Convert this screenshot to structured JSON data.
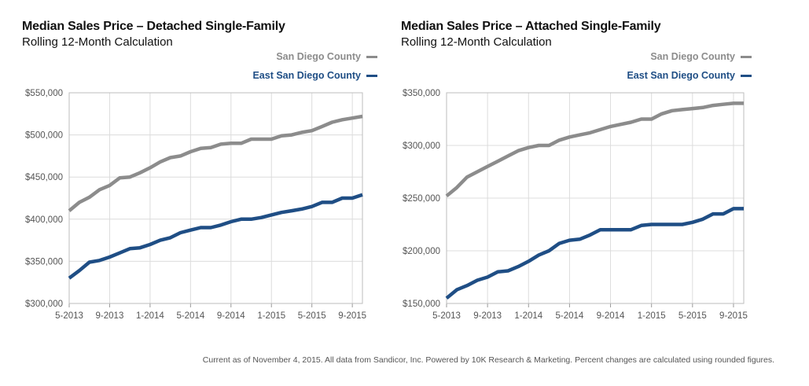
{
  "footer": "Current as of November 4, 2015. All data from Sandicor, Inc. Powered by 10K Research & Marketing. Percent changes are calculated using rounded figures.",
  "chart_data": [
    {
      "type": "line",
      "title": "Median Sales Price – Detached Single-Family",
      "subtitle": "Rolling 12-Month Calculation",
      "x_tick_labels": [
        "5-2013",
        "9-2013",
        "1-2014",
        "5-2014",
        "9-2014",
        "1-2015",
        "5-2015",
        "9-2015"
      ],
      "x": [
        "5-2013",
        "6-2013",
        "7-2013",
        "8-2013",
        "9-2013",
        "10-2013",
        "11-2013",
        "12-2013",
        "1-2014",
        "2-2014",
        "3-2014",
        "4-2014",
        "5-2014",
        "6-2014",
        "7-2014",
        "8-2014",
        "9-2014",
        "10-2014",
        "11-2014",
        "12-2014",
        "1-2015",
        "2-2015",
        "3-2015",
        "4-2015",
        "5-2015",
        "6-2015",
        "7-2015",
        "8-2015",
        "9-2015",
        "10-2015"
      ],
      "y_tick_labels": [
        "$300,000",
        "$350,000",
        "$400,000",
        "$450,000",
        "$500,000",
        "$550,000"
      ],
      "y_ticks": [
        300000,
        350000,
        400000,
        450000,
        500000,
        550000
      ],
      "ylim": [
        300000,
        550000
      ],
      "legend_position": "top-right",
      "grid": true,
      "series": [
        {
          "name": "San Diego County",
          "color": "#8c8c8c",
          "values": [
            410000,
            420000,
            426000,
            435000,
            440000,
            449000,
            450000,
            455000,
            461000,
            468000,
            473000,
            475000,
            480000,
            484000,
            485000,
            489000,
            490000,
            490000,
            495000,
            495000,
            495000,
            499000,
            500000,
            503000,
            505000,
            510000,
            515000,
            518000,
            520000,
            522000
          ]
        },
        {
          "name": "East San Diego County",
          "color": "#1f4e85",
          "values": [
            330000,
            339000,
            349000,
            351000,
            355000,
            360000,
            365000,
            366000,
            370000,
            375000,
            378000,
            384000,
            387000,
            390000,
            390000,
            393000,
            397000,
            400000,
            400000,
            402000,
            405000,
            408000,
            410000,
            412000,
            415000,
            420000,
            420000,
            425000,
            425000,
            429000
          ]
        }
      ]
    },
    {
      "type": "line",
      "title": "Median Sales Price – Attached Single-Family",
      "subtitle": "Rolling 12-Month Calculation",
      "x_tick_labels": [
        "5-2013",
        "9-2013",
        "1-2014",
        "5-2014",
        "9-2014",
        "1-2015",
        "5-2015",
        "9-2015"
      ],
      "x": [
        "5-2013",
        "6-2013",
        "7-2013",
        "8-2013",
        "9-2013",
        "10-2013",
        "11-2013",
        "12-2013",
        "1-2014",
        "2-2014",
        "3-2014",
        "4-2014",
        "5-2014",
        "6-2014",
        "7-2014",
        "8-2014",
        "9-2014",
        "10-2014",
        "11-2014",
        "12-2014",
        "1-2015",
        "2-2015",
        "3-2015",
        "4-2015",
        "5-2015",
        "6-2015",
        "7-2015",
        "8-2015",
        "9-2015",
        "10-2015"
      ],
      "y_tick_labels": [
        "$150,000",
        "$200,000",
        "$250,000",
        "$300,000",
        "$350,000"
      ],
      "y_ticks": [
        150000,
        200000,
        250000,
        300000,
        350000
      ],
      "ylim": [
        150000,
        350000
      ],
      "legend_position": "top-right",
      "grid": true,
      "series": [
        {
          "name": "San Diego County",
          "color": "#8c8c8c",
          "values": [
            252000,
            260000,
            270000,
            275000,
            280000,
            285000,
            290000,
            295000,
            298000,
            300000,
            300000,
            305000,
            308000,
            310000,
            312000,
            315000,
            318000,
            320000,
            322000,
            325000,
            325000,
            330000,
            333000,
            334000,
            335000,
            336000,
            338000,
            339000,
            340000,
            340000
          ]
        },
        {
          "name": "East San Diego County",
          "color": "#1f4e85",
          "values": [
            155000,
            163000,
            167000,
            172000,
            175000,
            180000,
            181000,
            185000,
            190000,
            196000,
            200000,
            207000,
            210000,
            211000,
            215000,
            220000,
            220000,
            220000,
            220000,
            224000,
            225000,
            225000,
            225000,
            225000,
            227000,
            230000,
            235000,
            235000,
            240000,
            240000
          ]
        }
      ]
    }
  ]
}
